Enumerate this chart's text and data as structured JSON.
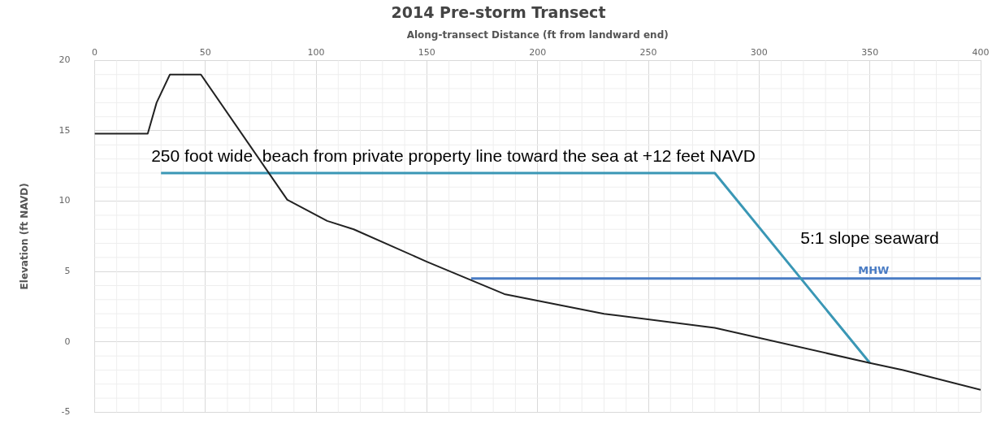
{
  "chart_data": {
    "type": "line",
    "title": "2014 Pre-storm Transect",
    "xlabel": "Along-transect Distance (ft from landward end)",
    "ylabel": "Elevation (ft NAVD)",
    "series": [
      {
        "color": "#222222",
        "x": [
          0,
          24,
          28,
          34,
          48,
          87,
          105,
          117,
          150,
          185,
          230,
          280,
          350,
          365,
          400
        ],
        "values": [
          14.8,
          14.8,
          17,
          19,
          19,
          10.1,
          8.6,
          8,
          5.7,
          3.4,
          2,
          1,
          -1.5,
          -2,
          -3.4
        ]
      },
      {
        "color": "#3a97b5",
        "x": [
          30,
          280,
          350
        ],
        "values": [
          12,
          12,
          -1.5
        ]
      },
      {
        "name": "MHW",
        "color": "#4a7cc4",
        "x": [
          170,
          400
        ],
        "values": [
          4.5,
          4.5
        ]
      }
    ],
    "annotations": [
      "250 foot wide  beach from private property line toward the sea at +12 feet NAVD",
      "5:1 slope seaward"
    ],
    "xlim": [
      0,
      400
    ],
    "xticks": [
      0,
      50,
      100,
      150,
      200,
      250,
      300,
      350,
      400
    ],
    "ylim": [
      -5,
      20
    ],
    "yticks": [
      -5,
      0,
      5,
      10,
      15,
      20
    ],
    "grid": true,
    "legend": false,
    "marker": "none",
    "line_style": "solid"
  }
}
